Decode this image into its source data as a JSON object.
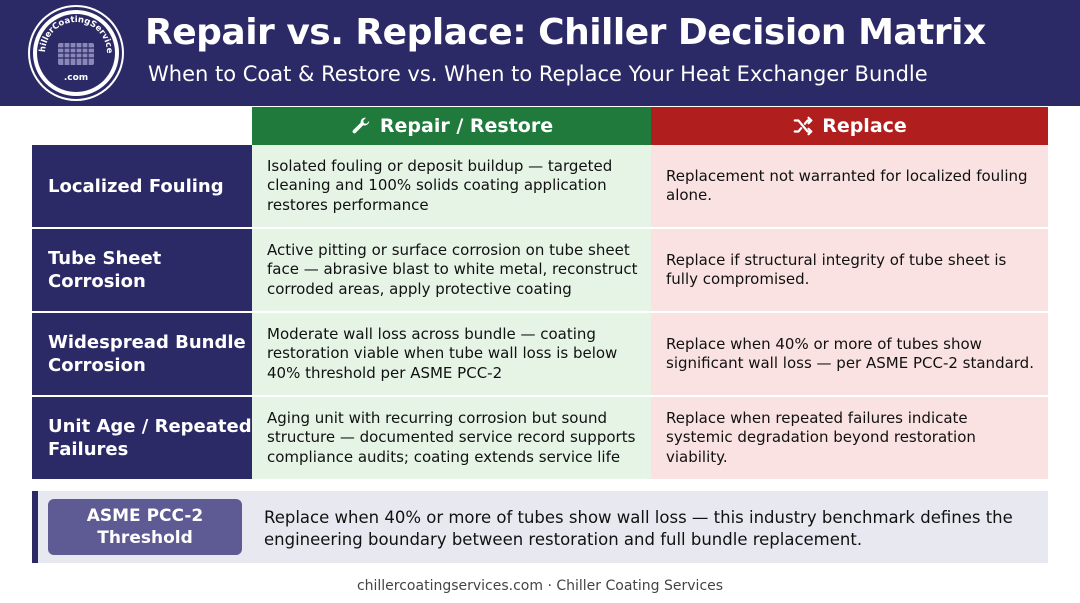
{
  "header": {
    "title": "Repair vs. Replace: Chiller Decision Matrix",
    "subtitle": "When to Coat & Restore vs. When to Replace Your Heat Exchanger Bundle",
    "logo_text_top": "ChillerCoatingServices",
    "logo_text_bottom": ".com"
  },
  "columns": {
    "repair": {
      "label": "Repair / Restore",
      "icon": "wrench-icon",
      "color": "#1f7a3c"
    },
    "replace": {
      "label": "Replace",
      "icon": "shuffle-icon",
      "color": "#b01e1e"
    }
  },
  "rows": [
    {
      "label": "Localized Fouling",
      "repair": "Isolated fouling or deposit buildup — targeted cleaning and 100% solids coating application restores performance",
      "replace": "Replacement not warranted for localized fouling alone."
    },
    {
      "label": "Tube Sheet Corrosion",
      "repair": "Active pitting or surface corrosion on tube sheet face — abrasive blast to white metal, reconstruct corroded areas, apply protective coating",
      "replace": "Replace if structural integrity of tube sheet is fully compromised."
    },
    {
      "label": "Widespread Bundle Corrosion",
      "repair": "Moderate wall loss across bundle — coating restoration viable when tube wall loss is below 40% threshold per ASME PCC-2",
      "replace": "Replace when 40% or more of tubes show significant wall loss — per ASME PCC-2 standard."
    },
    {
      "label": "Unit Age / Repeated Failures",
      "repair": "Aging unit with recurring corrosion but sound structure — documented service record supports compliance audits; coating extends service life",
      "replace": "Replace when repeated failures indicate systemic degradation beyond restoration viability."
    }
  ],
  "note": {
    "badge_line1": "ASME PCC-2",
    "badge_line2": "Threshold",
    "text": "Replace when 40% or more of tubes show wall loss — this industry benchmark defines the engineering boundary between restoration and full bundle replacement."
  },
  "footer": "chillercoatingservices.com · Chiller Coating Services",
  "colors": {
    "navy": "#2c2a66",
    "repair_bg": "#e6f4e6",
    "replace_bg": "#fbe2e2"
  }
}
